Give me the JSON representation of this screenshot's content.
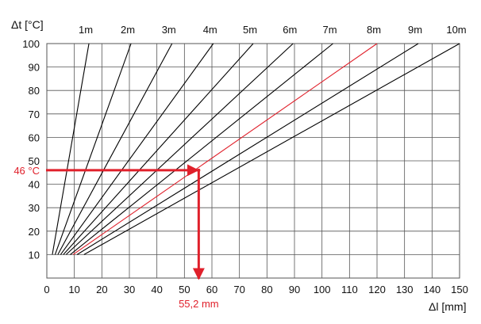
{
  "chart_data": {
    "type": "line",
    "title": "",
    "xlabel": "Δl [mm]",
    "ylabel": "Δt [°C]",
    "xlim": [
      0,
      150
    ],
    "ylim": [
      0,
      100
    ],
    "x_ticks": [
      "0",
      "10",
      "20",
      "30",
      "40",
      "50",
      "60",
      "70",
      "80",
      "90",
      "100",
      "110",
      "120",
      "130",
      "140",
      "150"
    ],
    "y_ticks": [
      "10",
      "20",
      "30",
      "40",
      "50",
      "60",
      "70",
      "80",
      "90",
      "100"
    ],
    "grid": true,
    "colors": {
      "line": "#000000",
      "highlight": "#e0202b",
      "grid": "#555555"
    },
    "series": [
      {
        "label": "1m",
        "x": [
          2.0,
          15.3
        ],
        "y": [
          10,
          100
        ],
        "highlight": false
      },
      {
        "label": "2m",
        "x": [
          3.0,
          30.6
        ],
        "y": [
          10,
          100
        ],
        "highlight": false
      },
      {
        "label": "3m",
        "x": [
          4.0,
          45.5
        ],
        "y": [
          10,
          100
        ],
        "highlight": false
      },
      {
        "label": "4m",
        "x": [
          5.0,
          60.5
        ],
        "y": [
          10,
          100
        ],
        "highlight": false
      },
      {
        "label": "5m",
        "x": [
          6.0,
          75.0
        ],
        "y": [
          10,
          100
        ],
        "highlight": false
      },
      {
        "label": "6m",
        "x": [
          7.0,
          89.5
        ],
        "y": [
          10,
          100
        ],
        "highlight": false
      },
      {
        "label": "7m",
        "x": [
          8.5,
          104.0
        ],
        "y": [
          10,
          100
        ],
        "highlight": false
      },
      {
        "label": "8m",
        "x": [
          9.5,
          120.0
        ],
        "y": [
          10,
          100
        ],
        "highlight": true
      },
      {
        "label": "9m",
        "x": [
          11.0,
          135.0
        ],
        "y": [
          10,
          100
        ],
        "highlight": false
      },
      {
        "label": "10m",
        "x": [
          13.5,
          150.0
        ],
        "y": [
          10,
          100
        ],
        "highlight": false
      }
    ],
    "annotation": {
      "y_value": 46,
      "x_value": 55.2,
      "y_label": "46 °C",
      "x_label": "55,2 mm"
    }
  }
}
